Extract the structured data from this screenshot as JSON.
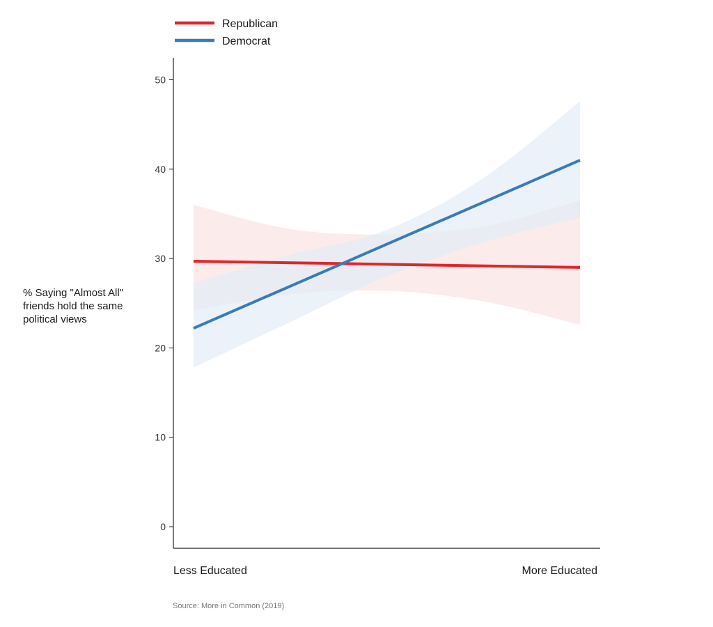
{
  "chart_data": {
    "type": "line",
    "title": "",
    "ylabel_lines": [
      "% Saying \"Almost All\"",
      "friends hold the same",
      "political views"
    ],
    "xlabel": "",
    "x": [
      0,
      1
    ],
    "x_tick_labels": [
      "Less Educated",
      "More Educated"
    ],
    "ylim": [
      0,
      52
    ],
    "yticks": [
      0,
      10,
      20,
      30,
      40,
      50
    ],
    "grid": false,
    "legend": "top-left",
    "series": [
      {
        "name": "Republican",
        "color": "#e3242b",
        "band_color": "#fbe3e3",
        "values": [
          29.7,
          29.0
        ],
        "band_x": [
          0,
          0.25,
          0.5,
          0.75,
          1
        ],
        "band_lower": [
          24.2,
          26.0,
          26.4,
          25.2,
          22.6
        ],
        "band_upper": [
          36.0,
          33.3,
          32.7,
          33.6,
          36.5
        ]
      },
      {
        "name": "Democrat",
        "color": "#3a7bb8",
        "band_color": "#e2ecf6",
        "values": [
          22.2,
          41.0
        ],
        "band_x": [
          0,
          0.25,
          0.5,
          0.75,
          1
        ],
        "band_lower": [
          17.8,
          22.9,
          28.0,
          31.8,
          34.6
        ],
        "band_upper": [
          27.3,
          30.4,
          33.2,
          39.0,
          47.6
        ]
      }
    ],
    "source": "Source: More in Common (2019)"
  }
}
